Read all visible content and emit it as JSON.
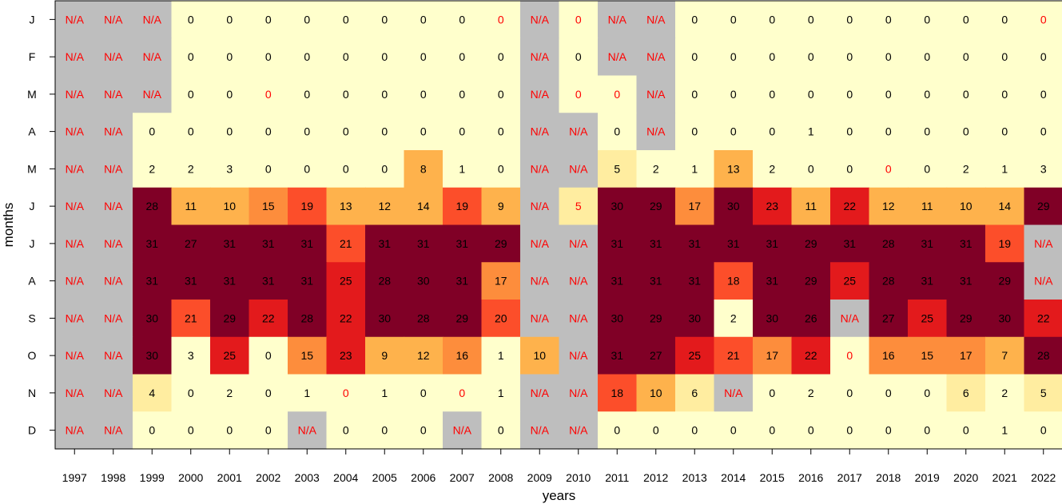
{
  "chart_data": {
    "type": "heatmap",
    "title": "",
    "xlabel": "years",
    "ylabel": "months",
    "x": [
      "1997",
      "1998",
      "1999",
      "2000",
      "2001",
      "2002",
      "2003",
      "2004",
      "2005",
      "2006",
      "2007",
      "2008",
      "2009",
      "2010",
      "2011",
      "2012",
      "2013",
      "2014",
      "2015",
      "2016",
      "2017",
      "2018",
      "2019",
      "2020",
      "2021",
      "2022"
    ],
    "y": [
      "J",
      "F",
      "M",
      "A",
      "M",
      "J",
      "J",
      "A",
      "S",
      "O",
      "N",
      "D"
    ],
    "values": [
      [
        null,
        null,
        null,
        0,
        0,
        0,
        0,
        0,
        0,
        0,
        0,
        0,
        null,
        0,
        null,
        null,
        0,
        0,
        0,
        0,
        0,
        0,
        0,
        0,
        0,
        0
      ],
      [
        null,
        null,
        null,
        0,
        0,
        0,
        0,
        0,
        0,
        0,
        0,
        0,
        null,
        0,
        null,
        null,
        0,
        0,
        0,
        0,
        0,
        0,
        0,
        0,
        0,
        0
      ],
      [
        null,
        null,
        null,
        0,
        0,
        0,
        0,
        0,
        0,
        0,
        0,
        0,
        null,
        0,
        0,
        null,
        0,
        0,
        0,
        0,
        0,
        0,
        0,
        0,
        0,
        0
      ],
      [
        null,
        null,
        0,
        0,
        0,
        0,
        0,
        0,
        0,
        0,
        0,
        0,
        null,
        null,
        0,
        null,
        0,
        0,
        0,
        1,
        0,
        0,
        0,
        0,
        0,
        0
      ],
      [
        null,
        null,
        2,
        2,
        3,
        0,
        0,
        0,
        0,
        8,
        1,
        0,
        null,
        null,
        5,
        2,
        1,
        13,
        2,
        0,
        0,
        0,
        0,
        2,
        1,
        3
      ],
      [
        null,
        null,
        28,
        11,
        10,
        15,
        19,
        13,
        12,
        14,
        19,
        9,
        null,
        5,
        30,
        29,
        17,
        30,
        23,
        11,
        22,
        12,
        11,
        10,
        14,
        29
      ],
      [
        null,
        null,
        31,
        27,
        31,
        31,
        31,
        21,
        31,
        31,
        31,
        29,
        null,
        null,
        31,
        31,
        31,
        31,
        31,
        29,
        31,
        28,
        31,
        31,
        19,
        null
      ],
      [
        null,
        null,
        31,
        31,
        31,
        31,
        31,
        25,
        28,
        30,
        31,
        17,
        null,
        null,
        31,
        31,
        31,
        18,
        31,
        29,
        25,
        28,
        31,
        31,
        29,
        null
      ],
      [
        null,
        null,
        30,
        21,
        29,
        22,
        28,
        22,
        30,
        28,
        29,
        20,
        null,
        null,
        30,
        29,
        30,
        2,
        30,
        26,
        null,
        27,
        25,
        29,
        30,
        22
      ],
      [
        null,
        null,
        30,
        3,
        25,
        0,
        15,
        23,
        9,
        12,
        16,
        1,
        10,
        null,
        31,
        27,
        25,
        21,
        17,
        22,
        0,
        16,
        15,
        17,
        7,
        28
      ],
      [
        null,
        null,
        4,
        0,
        2,
        0,
        1,
        0,
        1,
        0,
        0,
        1,
        null,
        null,
        18,
        10,
        6,
        null,
        0,
        2,
        0,
        0,
        0,
        6,
        2,
        5
      ],
      [
        null,
        null,
        0,
        0,
        0,
        0,
        null,
        0,
        0,
        0,
        null,
        0,
        null,
        null,
        0,
        0,
        0,
        0,
        0,
        0,
        0,
        0,
        0,
        0,
        1,
        0
      ]
    ],
    "red_labels": [
      [
        0,
        11
      ],
      [
        0,
        13
      ],
      [
        0,
        25
      ],
      [
        2,
        5
      ],
      [
        2,
        13
      ],
      [
        2,
        14
      ],
      [
        4,
        21
      ],
      [
        5,
        13
      ],
      [
        9,
        20
      ],
      [
        10,
        7
      ],
      [
        10,
        10
      ]
    ],
    "na_label": "N/A",
    "colors": {
      "na": "#bebebe",
      "level0": "#ffffcc",
      "level1": "#ffeda0",
      "level2": "#feb24c",
      "level3": "#fd8d3c",
      "level4": "#fc4e2a",
      "level5": "#e31a1c",
      "level6": "#800026",
      "text_normal": "#000000",
      "text_red": "#ff0000",
      "axis": "#000000"
    },
    "grid": false,
    "legend": "none"
  }
}
